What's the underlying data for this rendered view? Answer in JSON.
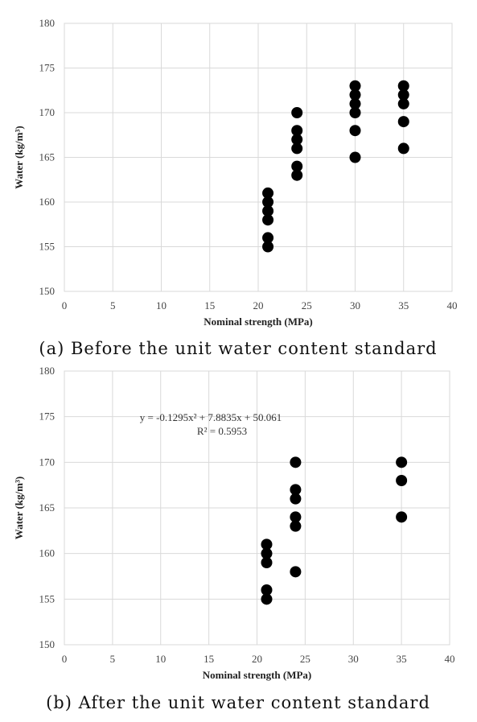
{
  "chart_data": [
    {
      "type": "scatter",
      "title": "",
      "caption": "(a) Before the unit water content standard",
      "xlabel": "Nominal strength (MPa)",
      "ylabel": "Water (kg/m³)",
      "xlim": [
        0,
        40
      ],
      "ylim": [
        150,
        180
      ],
      "xticks": [
        "0",
        "5",
        "10",
        "15",
        "20",
        "25",
        "30",
        "35",
        "40"
      ],
      "yticks": [
        "150",
        "155",
        "160",
        "165",
        "170",
        "175",
        "180"
      ],
      "grid": true,
      "trendline": null,
      "series": [
        {
          "points": [
            [
              21,
              155
            ],
            [
              21,
              156
            ],
            [
              21,
              158
            ],
            [
              21,
              159
            ],
            [
              21,
              160
            ],
            [
              21,
              161
            ],
            [
              24,
              163
            ],
            [
              24,
              164
            ],
            [
              24,
              166
            ],
            [
              24,
              167
            ],
            [
              24,
              168
            ],
            [
              24,
              170
            ],
            [
              30,
              165
            ],
            [
              30,
              168
            ],
            [
              30,
              170
            ],
            [
              30,
              171
            ],
            [
              30,
              172
            ],
            [
              30,
              173
            ],
            [
              35,
              166
            ],
            [
              35,
              169
            ],
            [
              35,
              171
            ],
            [
              35,
              172
            ],
            [
              35,
              173
            ]
          ]
        }
      ]
    },
    {
      "type": "scatter",
      "title": "",
      "caption": "(b) After the unit water content standard",
      "xlabel": "Nominal strength (MPa)",
      "ylabel": "Water (kg/m³)",
      "xlim": [
        0,
        40
      ],
      "ylim": [
        150,
        180
      ],
      "xticks": [
        "0",
        "5",
        "10",
        "15",
        "20",
        "25",
        "30",
        "35",
        "40"
      ],
      "yticks": [
        "150",
        "155",
        "160",
        "165",
        "170",
        "175",
        "180"
      ],
      "grid": true,
      "trendline": {
        "equation": "y = -0.1295x² + 7.8835x + 50.061",
        "r2": "R² = 0.5953"
      },
      "series": [
        {
          "points": [
            [
              21,
              155
            ],
            [
              21,
              156
            ],
            [
              21,
              159
            ],
            [
              21,
              160
            ],
            [
              21,
              161
            ],
            [
              24,
              158
            ],
            [
              24,
              163
            ],
            [
              24,
              164
            ],
            [
              24,
              166
            ],
            [
              24,
              167
            ],
            [
              24,
              170
            ],
            [
              35,
              164
            ],
            [
              35,
              168
            ],
            [
              35,
              170
            ]
          ]
        }
      ]
    }
  ]
}
